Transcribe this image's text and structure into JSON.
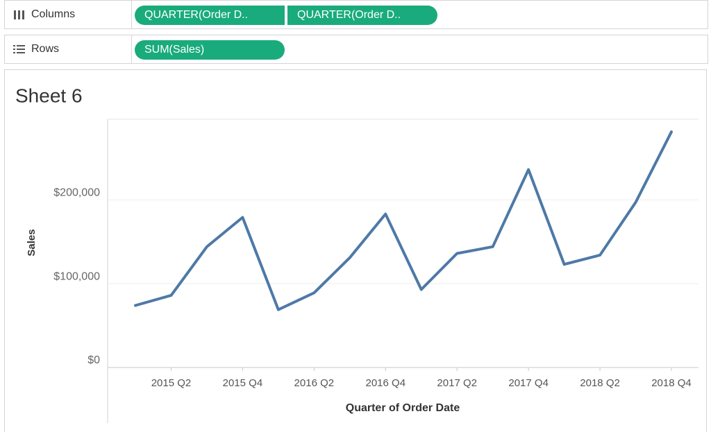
{
  "shelves": {
    "columns": {
      "label": "Columns",
      "pills": [
        "QUARTER(Order D..",
        "QUARTER(Order D.."
      ]
    },
    "rows": {
      "label": "Rows",
      "pills": [
        "SUM(Sales)"
      ]
    }
  },
  "chart_data": {
    "type": "line",
    "title": "Sheet 6",
    "x_label": "Quarter of Order Date",
    "y_label": "Sales",
    "categories": [
      null,
      "2015 Q2",
      null,
      "2015 Q4",
      null,
      "2016 Q2",
      null,
      "2016 Q4",
      null,
      "2017 Q2",
      null,
      "2017 Q4",
      null,
      "2018 Q2",
      null,
      "2018 Q4"
    ],
    "series": [
      {
        "name": "SUM(Sales)",
        "color": "#4e79a7",
        "values": [
          74000,
          86000,
          144000,
          179000,
          69000,
          89000,
          131000,
          183000,
          93000,
          136000,
          144000,
          236000,
          123000,
          134000,
          197000,
          281000
        ]
      }
    ],
    "ylim": [
      0,
      296000
    ],
    "yticks": [
      {
        "value": 0,
        "label": "$0"
      },
      {
        "value": 100000,
        "label": "$100,000"
      },
      {
        "value": 200000,
        "label": "$200,000"
      }
    ],
    "grid": true
  }
}
